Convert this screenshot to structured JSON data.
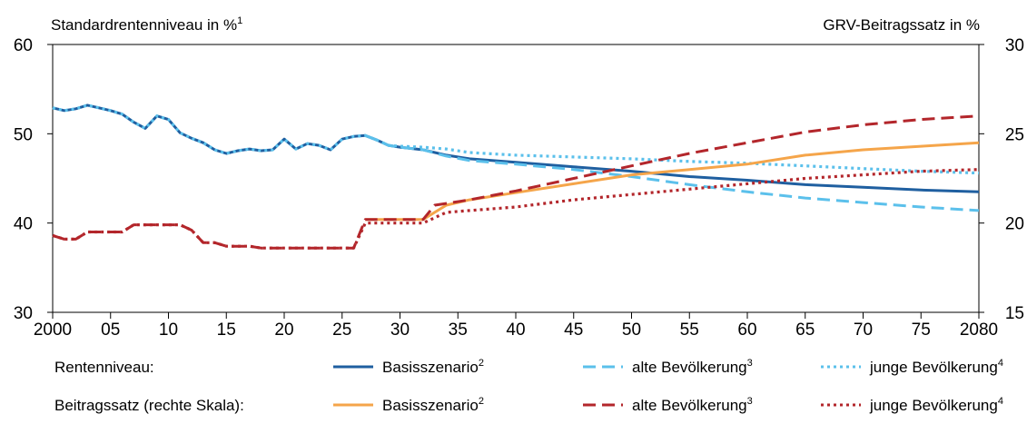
{
  "chart_data": {
    "type": "line",
    "left_axis_title": "Standardrentenniveau in %",
    "left_axis_title_sup": "1",
    "right_axis_title": "GRV-Beitragssatz in %",
    "x_ticks": [
      {
        "value": 2000,
        "label": "2000"
      },
      {
        "value": 2005,
        "label": "05"
      },
      {
        "value": 2010,
        "label": "10"
      },
      {
        "value": 2015,
        "label": "15"
      },
      {
        "value": 2020,
        "label": "20"
      },
      {
        "value": 2025,
        "label": "25"
      },
      {
        "value": 2030,
        "label": "30"
      },
      {
        "value": 2035,
        "label": "35"
      },
      {
        "value": 2040,
        "label": "40"
      },
      {
        "value": 2045,
        "label": "45"
      },
      {
        "value": 2050,
        "label": "50"
      },
      {
        "value": 2055,
        "label": "55"
      },
      {
        "value": 2060,
        "label": "60"
      },
      {
        "value": 2065,
        "label": "65"
      },
      {
        "value": 2070,
        "label": "70"
      },
      {
        "value": 2075,
        "label": "75"
      },
      {
        "value": 2080,
        "label": "2080"
      }
    ],
    "xlim": [
      2000,
      2080
    ],
    "y_left": {
      "lim": [
        30,
        60
      ],
      "ticks": [
        30,
        40,
        50,
        60
      ]
    },
    "y_right": {
      "lim": [
        15,
        30
      ],
      "ticks": [
        15,
        20,
        25,
        30
      ]
    },
    "colors": {
      "dark_blue": "#1f5fa0",
      "light_blue": "#5bc0eb",
      "orange": "#f5a54a",
      "dark_red": "#b3262b"
    },
    "series": [
      {
        "key": "rn_basis",
        "axis": "left",
        "color": "#1f5fa0",
        "dash": "solid",
        "points": [
          [
            2000,
            52.9
          ],
          [
            2001,
            52.6
          ],
          [
            2002,
            52.8
          ],
          [
            2003,
            53.2
          ],
          [
            2004,
            52.9
          ],
          [
            2005,
            52.6
          ],
          [
            2006,
            52.2
          ],
          [
            2007,
            51.3
          ],
          [
            2008,
            50.6
          ],
          [
            2009,
            52.0
          ],
          [
            2010,
            51.6
          ],
          [
            2011,
            50.1
          ],
          [
            2012,
            49.5
          ],
          [
            2013,
            49.0
          ],
          [
            2014,
            48.2
          ],
          [
            2015,
            47.8
          ],
          [
            2016,
            48.1
          ],
          [
            2017,
            48.3
          ],
          [
            2018,
            48.1
          ],
          [
            2019,
            48.2
          ],
          [
            2020,
            49.4
          ],
          [
            2021,
            48.3
          ],
          [
            2022,
            48.9
          ],
          [
            2023,
            48.7
          ],
          [
            2024,
            48.2
          ],
          [
            2025,
            49.4
          ],
          [
            2026,
            49.7
          ],
          [
            2027,
            49.8
          ],
          [
            2028,
            49.3
          ],
          [
            2029,
            48.7
          ],
          [
            2030,
            48.5
          ],
          [
            2032,
            48.2
          ],
          [
            2034,
            47.6
          ],
          [
            2036,
            47.2
          ],
          [
            2040,
            46.8
          ],
          [
            2045,
            46.3
          ],
          [
            2050,
            45.8
          ],
          [
            2055,
            45.2
          ],
          [
            2060,
            44.8
          ],
          [
            2065,
            44.3
          ],
          [
            2070,
            44.0
          ],
          [
            2075,
            43.7
          ],
          [
            2080,
            43.5
          ]
        ]
      },
      {
        "key": "rn_alt",
        "axis": "left",
        "color": "#5bc0eb",
        "dash": "dash",
        "points": [
          [
            2027,
            49.8
          ],
          [
            2028,
            49.3
          ],
          [
            2029,
            48.7
          ],
          [
            2030,
            48.5
          ],
          [
            2032,
            48.2
          ],
          [
            2034,
            47.5
          ],
          [
            2036,
            47.0
          ],
          [
            2040,
            46.6
          ],
          [
            2045,
            46.0
          ],
          [
            2050,
            45.2
          ],
          [
            2055,
            44.3
          ],
          [
            2060,
            43.5
          ],
          [
            2065,
            42.8
          ],
          [
            2070,
            42.3
          ],
          [
            2075,
            41.8
          ],
          [
            2080,
            41.4
          ]
        ]
      },
      {
        "key": "rn_jung",
        "axis": "left",
        "color": "#5bc0eb",
        "dash": "dot",
        "points": [
          [
            2000,
            52.9
          ],
          [
            2001,
            52.6
          ],
          [
            2002,
            52.8
          ],
          [
            2003,
            53.2
          ],
          [
            2004,
            52.9
          ],
          [
            2005,
            52.6
          ],
          [
            2006,
            52.2
          ],
          [
            2007,
            51.3
          ],
          [
            2008,
            50.6
          ],
          [
            2009,
            52.0
          ],
          [
            2010,
            51.6
          ],
          [
            2011,
            50.1
          ],
          [
            2012,
            49.5
          ],
          [
            2013,
            49.0
          ],
          [
            2014,
            48.2
          ],
          [
            2015,
            47.8
          ],
          [
            2016,
            48.1
          ],
          [
            2017,
            48.3
          ],
          [
            2018,
            48.1
          ],
          [
            2019,
            48.2
          ],
          [
            2020,
            49.4
          ],
          [
            2021,
            48.3
          ],
          [
            2022,
            48.9
          ],
          [
            2023,
            48.7
          ],
          [
            2024,
            48.2
          ],
          [
            2025,
            49.4
          ],
          [
            2026,
            49.7
          ],
          [
            2027,
            49.8
          ],
          [
            2028,
            49.3
          ],
          [
            2029,
            48.7
          ],
          [
            2030,
            48.6
          ],
          [
            2032,
            48.5
          ],
          [
            2034,
            48.3
          ],
          [
            2036,
            47.9
          ],
          [
            2040,
            47.6
          ],
          [
            2045,
            47.4
          ],
          [
            2050,
            47.2
          ],
          [
            2055,
            46.9
          ],
          [
            2060,
            46.7
          ],
          [
            2065,
            46.4
          ],
          [
            2070,
            46.1
          ],
          [
            2075,
            45.8
          ],
          [
            2080,
            45.6
          ]
        ]
      },
      {
        "key": "bs_basis",
        "axis": "right",
        "color": "#f5a54a",
        "dash": "solid",
        "points": [
          [
            2027,
            20.2
          ],
          [
            2032,
            20.2
          ],
          [
            2034,
            21.0
          ],
          [
            2036,
            21.3
          ],
          [
            2040,
            21.7
          ],
          [
            2045,
            22.2
          ],
          [
            2050,
            22.7
          ],
          [
            2055,
            23.0
          ],
          [
            2060,
            23.3
          ],
          [
            2065,
            23.8
          ],
          [
            2070,
            24.1
          ],
          [
            2075,
            24.3
          ],
          [
            2080,
            24.5
          ]
        ]
      },
      {
        "key": "bs_alt",
        "axis": "right",
        "color": "#b3262b",
        "dash": "dash",
        "points": [
          [
            2000,
            19.3
          ],
          [
            2001,
            19.1
          ],
          [
            2002,
            19.1
          ],
          [
            2003,
            19.5
          ],
          [
            2004,
            19.5
          ],
          [
            2005,
            19.5
          ],
          [
            2006,
            19.5
          ],
          [
            2007,
            19.9
          ],
          [
            2008,
            19.9
          ],
          [
            2009,
            19.9
          ],
          [
            2010,
            19.9
          ],
          [
            2011,
            19.9
          ],
          [
            2012,
            19.6
          ],
          [
            2013,
            18.9
          ],
          [
            2014,
            18.9
          ],
          [
            2015,
            18.7
          ],
          [
            2016,
            18.7
          ],
          [
            2017,
            18.7
          ],
          [
            2018,
            18.6
          ],
          [
            2019,
            18.6
          ],
          [
            2020,
            18.6
          ],
          [
            2021,
            18.6
          ],
          [
            2022,
            18.6
          ],
          [
            2023,
            18.6
          ],
          [
            2024,
            18.6
          ],
          [
            2025,
            18.6
          ],
          [
            2026,
            18.6
          ],
          [
            2027,
            20.2
          ],
          [
            2032,
            20.2
          ],
          [
            2033,
            21.0
          ],
          [
            2036,
            21.3
          ],
          [
            2040,
            21.8
          ],
          [
            2045,
            22.5
          ],
          [
            2050,
            23.2
          ],
          [
            2055,
            23.9
          ],
          [
            2060,
            24.5
          ],
          [
            2065,
            25.1
          ],
          [
            2070,
            25.5
          ],
          [
            2075,
            25.8
          ],
          [
            2080,
            26.0
          ]
        ]
      },
      {
        "key": "bs_jung",
        "axis": "right",
        "color": "#b3262b",
        "dash": "dot",
        "points": [
          [
            2000,
            19.3
          ],
          [
            2001,
            19.1
          ],
          [
            2002,
            19.1
          ],
          [
            2003,
            19.5
          ],
          [
            2004,
            19.5
          ],
          [
            2005,
            19.5
          ],
          [
            2006,
            19.5
          ],
          [
            2007,
            19.9
          ],
          [
            2008,
            19.9
          ],
          [
            2009,
            19.9
          ],
          [
            2010,
            19.9
          ],
          [
            2011,
            19.9
          ],
          [
            2012,
            19.6
          ],
          [
            2013,
            18.9
          ],
          [
            2014,
            18.9
          ],
          [
            2015,
            18.7
          ],
          [
            2016,
            18.7
          ],
          [
            2017,
            18.7
          ],
          [
            2018,
            18.6
          ],
          [
            2019,
            18.6
          ],
          [
            2020,
            18.6
          ],
          [
            2021,
            18.6
          ],
          [
            2022,
            18.6
          ],
          [
            2023,
            18.6
          ],
          [
            2024,
            18.6
          ],
          [
            2025,
            18.6
          ],
          [
            2026,
            18.6
          ],
          [
            2027,
            20.0
          ],
          [
            2032,
            20.0
          ],
          [
            2034,
            20.6
          ],
          [
            2036,
            20.7
          ],
          [
            2040,
            20.9
          ],
          [
            2045,
            21.3
          ],
          [
            2050,
            21.6
          ],
          [
            2055,
            21.9
          ],
          [
            2060,
            22.2
          ],
          [
            2065,
            22.5
          ],
          [
            2070,
            22.7
          ],
          [
            2075,
            22.9
          ],
          [
            2080,
            23.0
          ]
        ]
      }
    ],
    "legend": {
      "placement": "bottom",
      "rows": [
        {
          "label": "Rentenniveau:",
          "entries": [
            {
              "text": "Basisszenario",
              "sup": "2",
              "color": "#1f5fa0",
              "dash": "solid"
            },
            {
              "text": "alte Bevölkerung",
              "sup": "3",
              "color": "#5bc0eb",
              "dash": "dash"
            },
            {
              "text": "junge Bevölkerung",
              "sup": "4",
              "color": "#5bc0eb",
              "dash": "dot"
            }
          ]
        },
        {
          "label": "Beitragssatz (rechte Skala):",
          "entries": [
            {
              "text": "Basisszenario",
              "sup": "2",
              "color": "#f5a54a",
              "dash": "solid"
            },
            {
              "text": "alte Bevölkerung",
              "sup": "3",
              "color": "#b3262b",
              "dash": "dash"
            },
            {
              "text": "junge Bevölkerung",
              "sup": "4",
              "color": "#b3262b",
              "dash": "dot"
            }
          ]
        }
      ]
    }
  }
}
